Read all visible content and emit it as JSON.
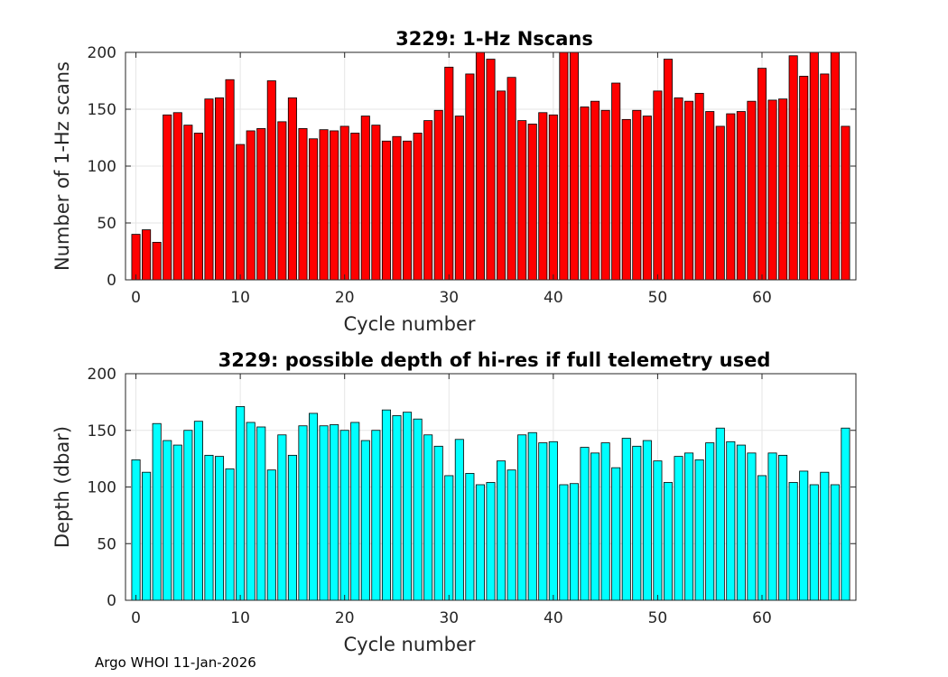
{
  "footer": "Argo WHOI 11-Jan-2026",
  "chart_data": [
    {
      "type": "bar",
      "title": "3229: 1-Hz Nscans",
      "xlabel": "Cycle number",
      "ylabel": "Number of 1-Hz scans",
      "xlim": [
        -1,
        69
      ],
      "ylim": [
        0,
        200
      ],
      "xticks": [
        0,
        10,
        20,
        30,
        40,
        50,
        60
      ],
      "yticks": [
        0,
        50,
        100,
        150,
        200
      ],
      "grid": true,
      "color": "#ff0000",
      "x": [
        0,
        1,
        2,
        3,
        4,
        5,
        6,
        7,
        8,
        9,
        10,
        11,
        12,
        13,
        14,
        15,
        16,
        17,
        18,
        19,
        20,
        21,
        22,
        23,
        24,
        25,
        26,
        27,
        28,
        29,
        30,
        31,
        32,
        33,
        34,
        35,
        36,
        37,
        38,
        39,
        40,
        41,
        42,
        43,
        44,
        45,
        46,
        47,
        48,
        49,
        50,
        51,
        52,
        53,
        54,
        55,
        56,
        57,
        58,
        59,
        60,
        61,
        62,
        63,
        64,
        65,
        66,
        67,
        68
      ],
      "values": [
        40,
        44,
        33,
        145,
        147,
        136,
        129,
        159,
        160,
        176,
        119,
        131,
        133,
        175,
        139,
        160,
        133,
        124,
        132,
        131,
        135,
        129,
        144,
        136,
        122,
        126,
        122,
        129,
        140,
        149,
        187,
        144,
        181,
        200,
        194,
        166,
        178,
        140,
        137,
        147,
        145,
        200,
        200,
        152,
        157,
        149,
        173,
        141,
        149,
        144,
        166,
        194,
        160,
        157,
        164,
        148,
        135,
        146,
        148,
        157,
        186,
        158,
        159,
        197,
        179,
        200,
        181,
        200,
        135
      ]
    },
    {
      "type": "bar",
      "title": "3229: possible depth of hi-res if full telemetry used",
      "xlabel": "Cycle number",
      "ylabel": "Depth (dbar)",
      "xlim": [
        -1,
        69
      ],
      "ylim": [
        0,
        200
      ],
      "xticks": [
        0,
        10,
        20,
        30,
        40,
        50,
        60
      ],
      "yticks": [
        0,
        50,
        100,
        150,
        200
      ],
      "grid": true,
      "color": "#00ffff",
      "x": [
        0,
        1,
        2,
        3,
        4,
        5,
        6,
        7,
        8,
        9,
        10,
        11,
        12,
        13,
        14,
        15,
        16,
        17,
        18,
        19,
        20,
        21,
        22,
        23,
        24,
        25,
        26,
        27,
        28,
        29,
        30,
        31,
        32,
        33,
        34,
        35,
        36,
        37,
        38,
        39,
        40,
        41,
        42,
        43,
        44,
        45,
        46,
        47,
        48,
        49,
        50,
        51,
        52,
        53,
        54,
        55,
        56,
        57,
        58,
        59,
        60,
        61,
        62,
        63,
        64,
        65,
        66,
        67,
        68
      ],
      "values": [
        124,
        113,
        156,
        141,
        137,
        150,
        158,
        128,
        127,
        116,
        171,
        157,
        153,
        115,
        146,
        128,
        154,
        165,
        154,
        155,
        150,
        157,
        141,
        150,
        168,
        163,
        166,
        160,
        146,
        136,
        110,
        142,
        112,
        102,
        104,
        123,
        115,
        146,
        148,
        139,
        140,
        102,
        103,
        135,
        130,
        139,
        117,
        143,
        136,
        141,
        123,
        104,
        127,
        130,
        124,
        139,
        152,
        140,
        137,
        130,
        110,
        130,
        128,
        104,
        114,
        102,
        113,
        102,
        152
      ]
    }
  ]
}
